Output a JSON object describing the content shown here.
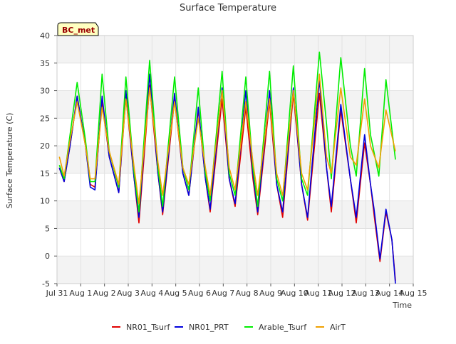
{
  "chart_data": {
    "type": "line",
    "title": "Surface Temperature",
    "xlabel": "Time",
    "ylabel": "Surface Temperature (C)",
    "site_label": "BC_met",
    "xlim": [
      0,
      15
    ],
    "ylim": [
      -5,
      40
    ],
    "x_ticks": [
      {
        "value": 0,
        "label": "Jul 31"
      },
      {
        "value": 1,
        "label": "Aug 1"
      },
      {
        "value": 2,
        "label": "Aug 2"
      },
      {
        "value": 3,
        "label": "Aug 3"
      },
      {
        "value": 4,
        "label": "Aug 4"
      },
      {
        "value": 5,
        "label": "Aug 5"
      },
      {
        "value": 6,
        "label": "Aug 6"
      },
      {
        "value": 7,
        "label": "Aug 7"
      },
      {
        "value": 8,
        "label": "Aug 8"
      },
      {
        "value": 9,
        "label": "Aug 9"
      },
      {
        "value": 10,
        "label": "Aug 10"
      },
      {
        "value": 11,
        "label": "Aug 11"
      },
      {
        "value": 12,
        "label": "Aug 12"
      },
      {
        "value": 13,
        "label": "Aug 13"
      },
      {
        "value": 14,
        "label": "Aug 14"
      },
      {
        "value": 15,
        "label": "Aug 15"
      }
    ],
    "y_ticks": [
      -5,
      0,
      5,
      10,
      15,
      20,
      25,
      30,
      35,
      40
    ],
    "grid": true,
    "legend_position": "bottom",
    "series": [
      {
        "name": "NR01_Tsurf",
        "color": "#e00000",
        "points": [
          [
            0.1,
            16
          ],
          [
            0.3,
            13.5
          ],
          [
            0.55,
            20
          ],
          [
            0.85,
            29
          ],
          [
            1.2,
            20
          ],
          [
            1.4,
            13
          ],
          [
            1.6,
            12.5
          ],
          [
            1.9,
            28
          ],
          [
            2.2,
            18
          ],
          [
            2.6,
            11.5
          ],
          [
            2.9,
            29
          ],
          [
            3.25,
            14
          ],
          [
            3.45,
            6
          ],
          [
            3.9,
            31
          ],
          [
            4.25,
            15
          ],
          [
            4.45,
            7.5
          ],
          [
            4.95,
            28.5
          ],
          [
            5.3,
            15
          ],
          [
            5.55,
            11
          ],
          [
            5.95,
            26.5
          ],
          [
            6.25,
            14
          ],
          [
            6.45,
            8
          ],
          [
            6.95,
            28.5
          ],
          [
            7.25,
            14
          ],
          [
            7.5,
            9
          ],
          [
            7.95,
            27
          ],
          [
            8.25,
            14
          ],
          [
            8.45,
            7.5
          ],
          [
            8.95,
            28
          ],
          [
            9.25,
            13
          ],
          [
            9.5,
            7
          ],
          [
            9.95,
            29.5
          ],
          [
            10.3,
            13
          ],
          [
            10.55,
            6.5
          ],
          [
            11.05,
            29.5
          ],
          [
            11.35,
            16
          ],
          [
            11.55,
            8
          ],
          [
            11.95,
            26.5
          ],
          [
            12.35,
            14
          ],
          [
            12.6,
            6
          ],
          [
            12.95,
            20.5
          ],
          [
            13.2,
            13
          ],
          [
            13.35,
            7.5
          ],
          [
            13.6,
            -1
          ],
          [
            13.85,
            8
          ],
          [
            14.1,
            3
          ],
          [
            14.25,
            -4.5
          ]
        ]
      },
      {
        "name": "NR01_PRT",
        "color": "#0000dd",
        "points": [
          [
            0.1,
            16
          ],
          [
            0.3,
            13.5
          ],
          [
            0.55,
            20
          ],
          [
            0.85,
            29
          ],
          [
            1.2,
            20
          ],
          [
            1.4,
            12.5
          ],
          [
            1.6,
            12
          ],
          [
            1.9,
            29
          ],
          [
            2.2,
            18
          ],
          [
            2.6,
            11.5
          ],
          [
            2.9,
            30
          ],
          [
            3.25,
            14
          ],
          [
            3.45,
            7
          ],
          [
            3.9,
            33
          ],
          [
            4.25,
            15
          ],
          [
            4.45,
            8
          ],
          [
            4.95,
            29.5
          ],
          [
            5.3,
            15
          ],
          [
            5.55,
            11
          ],
          [
            5.95,
            27
          ],
          [
            6.25,
            14
          ],
          [
            6.45,
            8.5
          ],
          [
            6.95,
            30.5
          ],
          [
            7.25,
            14
          ],
          [
            7.5,
            9.5
          ],
          [
            7.95,
            30
          ],
          [
            8.25,
            15
          ],
          [
            8.45,
            8
          ],
          [
            8.95,
            30
          ],
          [
            9.25,
            13
          ],
          [
            9.5,
            8
          ],
          [
            9.95,
            30.5
          ],
          [
            10.3,
            13
          ],
          [
            10.55,
            7
          ],
          [
            11.05,
            32
          ],
          [
            11.35,
            16
          ],
          [
            11.55,
            9
          ],
          [
            11.95,
            27.5
          ],
          [
            12.35,
            14
          ],
          [
            12.6,
            7
          ],
          [
            12.95,
            22
          ],
          [
            13.2,
            13
          ],
          [
            13.35,
            8.5
          ],
          [
            13.6,
            -0.5
          ],
          [
            13.85,
            8.5
          ],
          [
            14.1,
            3
          ],
          [
            14.25,
            -5
          ]
        ]
      },
      {
        "name": "Arable_Tsurf",
        "color": "#00ee00",
        "points": [
          [
            0.1,
            16.5
          ],
          [
            0.3,
            14
          ],
          [
            0.55,
            22
          ],
          [
            0.85,
            31.5
          ],
          [
            1.2,
            21
          ],
          [
            1.4,
            13.5
          ],
          [
            1.6,
            13.5
          ],
          [
            1.9,
            33
          ],
          [
            2.2,
            19
          ],
          [
            2.6,
            12.5
          ],
          [
            2.9,
            32.5
          ],
          [
            3.25,
            15
          ],
          [
            3.45,
            8
          ],
          [
            3.9,
            35.5
          ],
          [
            4.25,
            16
          ],
          [
            4.45,
            9
          ],
          [
            4.95,
            32.5
          ],
          [
            5.3,
            16
          ],
          [
            5.55,
            12
          ],
          [
            5.95,
            30.5
          ],
          [
            6.25,
            15
          ],
          [
            6.45,
            10
          ],
          [
            6.95,
            33.5
          ],
          [
            7.25,
            15
          ],
          [
            7.5,
            11
          ],
          [
            7.95,
            32.5
          ],
          [
            8.25,
            16
          ],
          [
            8.45,
            9
          ],
          [
            8.95,
            33.5
          ],
          [
            9.25,
            14
          ],
          [
            9.5,
            10
          ],
          [
            9.95,
            34.5
          ],
          [
            10.3,
            14
          ],
          [
            10.55,
            11
          ],
          [
            11.05,
            37
          ],
          [
            11.35,
            24
          ],
          [
            11.55,
            14
          ],
          [
            11.95,
            36
          ],
          [
            12.35,
            20
          ],
          [
            12.6,
            14.5
          ],
          [
            12.95,
            34
          ],
          [
            13.2,
            22
          ],
          [
            13.55,
            14.5
          ],
          [
            13.85,
            32
          ],
          [
            14.25,
            17.5
          ]
        ]
      },
      {
        "name": "AirT",
        "color": "#f0a000",
        "points": [
          [
            0.1,
            18
          ],
          [
            0.3,
            14.5
          ],
          [
            0.55,
            21
          ],
          [
            0.85,
            28
          ],
          [
            1.2,
            20
          ],
          [
            1.4,
            14
          ],
          [
            1.6,
            14
          ],
          [
            1.9,
            27
          ],
          [
            2.2,
            19
          ],
          [
            2.6,
            13
          ],
          [
            2.9,
            28.5
          ],
          [
            3.25,
            16
          ],
          [
            3.45,
            9.5
          ],
          [
            3.9,
            30.5
          ],
          [
            4.25,
            17
          ],
          [
            4.45,
            11
          ],
          [
            4.95,
            28
          ],
          [
            5.3,
            16
          ],
          [
            5.55,
            13
          ],
          [
            5.95,
            25
          ],
          [
            6.25,
            16
          ],
          [
            6.45,
            11
          ],
          [
            6.95,
            30
          ],
          [
            7.25,
            16
          ],
          [
            7.5,
            12
          ],
          [
            7.95,
            28
          ],
          [
            8.25,
            17
          ],
          [
            8.45,
            11
          ],
          [
            8.95,
            28.5
          ],
          [
            9.25,
            15
          ],
          [
            9.5,
            11
          ],
          [
            9.95,
            30
          ],
          [
            10.3,
            15
          ],
          [
            10.55,
            12
          ],
          [
            11.05,
            33
          ],
          [
            11.35,
            18
          ],
          [
            11.55,
            15
          ],
          [
            11.95,
            30.5
          ],
          [
            12.35,
            18
          ],
          [
            12.6,
            16.5
          ],
          [
            12.95,
            28.5
          ],
          [
            13.2,
            20
          ],
          [
            13.55,
            16
          ],
          [
            13.85,
            26.5
          ],
          [
            14.25,
            19
          ]
        ]
      }
    ]
  }
}
